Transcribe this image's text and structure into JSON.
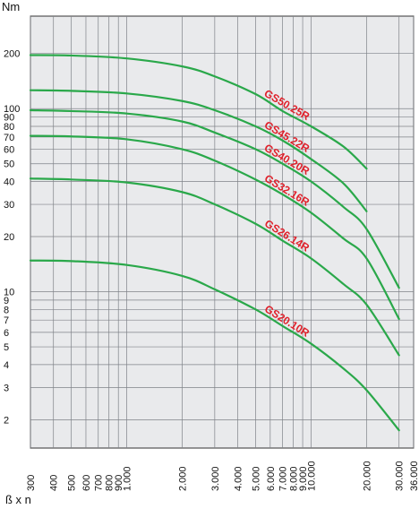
{
  "chart_data": {
    "type": "line",
    "title": "",
    "ylabel": "Nm",
    "xlabel": "ß x n",
    "x_scale": "log",
    "y_scale": "log",
    "xlim": [
      300,
      36000
    ],
    "ylim": [
      1.4,
      320
    ],
    "grid": true,
    "line_color": "#2aa84a",
    "label_color": "#e0202a",
    "background": "#e9eaec",
    "y_ticks": [
      {
        "value": 200,
        "label": "200"
      },
      {
        "value": 100,
        "label": "100"
      },
      {
        "value": 90,
        "label": "90"
      },
      {
        "value": 80,
        "label": "80"
      },
      {
        "value": 70,
        "label": "70"
      },
      {
        "value": 60,
        "label": "60"
      },
      {
        "value": 50,
        "label": "50"
      },
      {
        "value": 40,
        "label": "40"
      },
      {
        "value": 30,
        "label": "30"
      },
      {
        "value": 20,
        "label": "20"
      },
      {
        "value": 10,
        "label": "10"
      },
      {
        "value": 9,
        "label": "9"
      },
      {
        "value": 8,
        "label": "8"
      },
      {
        "value": 7,
        "label": "7"
      },
      {
        "value": 6,
        "label": "6"
      },
      {
        "value": 5,
        "label": "5"
      },
      {
        "value": 4,
        "label": "4"
      },
      {
        "value": 3,
        "label": "3"
      },
      {
        "value": 2,
        "label": "2"
      }
    ],
    "x_ticks": [
      {
        "value": 300,
        "label": "300"
      },
      {
        "value": 400,
        "label": "400"
      },
      {
        "value": 500,
        "label": "500"
      },
      {
        "value": 600,
        "label": "600"
      },
      {
        "value": 700,
        "label": "700"
      },
      {
        "value": 800,
        "label": "800"
      },
      {
        "value": 900,
        "label": "900"
      },
      {
        "value": 1000,
        "label": "1.000"
      },
      {
        "value": 2000,
        "label": "2.000"
      },
      {
        "value": 3000,
        "label": "3.000"
      },
      {
        "value": 4000,
        "label": "4.000"
      },
      {
        "value": 5000,
        "label": "5.000"
      },
      {
        "value": 6000,
        "label": "6.000"
      },
      {
        "value": 7000,
        "label": "7.000"
      },
      {
        "value": 8000,
        "label": "8.000"
      },
      {
        "value": 9000,
        "label": "9.000"
      },
      {
        "value": 10000,
        "label": "10.000"
      },
      {
        "value": 20000,
        "label": "20.000"
      },
      {
        "value": 30000,
        "label": "30.000"
      },
      {
        "value": 36000,
        "label": "36.000"
      }
    ],
    "series": [
      {
        "name": "GS50.25R",
        "points": [
          [
            300,
            196
          ],
          [
            500,
            195
          ],
          [
            1000,
            188
          ],
          [
            2000,
            170
          ],
          [
            3000,
            150
          ],
          [
            5000,
            120
          ],
          [
            7000,
            97
          ],
          [
            10000,
            80
          ],
          [
            15000,
            62
          ],
          [
            20000,
            47
          ]
        ]
      },
      {
        "name": "GS45.22R",
        "points": [
          [
            300,
            126
          ],
          [
            500,
            125
          ],
          [
            1000,
            121
          ],
          [
            2000,
            110
          ],
          [
            3000,
            98
          ],
          [
            5000,
            80
          ],
          [
            7000,
            67
          ],
          [
            10000,
            53
          ],
          [
            15000,
            39
          ],
          [
            20000,
            27.5
          ]
        ]
      },
      {
        "name": "GS40.20R",
        "points": [
          [
            300,
            98
          ],
          [
            500,
            97
          ],
          [
            1000,
            94
          ],
          [
            2000,
            85
          ],
          [
            3000,
            74
          ],
          [
            5000,
            60
          ],
          [
            7000,
            50
          ],
          [
            10000,
            40
          ],
          [
            15000,
            29
          ],
          [
            20000,
            22
          ],
          [
            30000,
            10.5
          ]
        ]
      },
      {
        "name": "GS32.16R",
        "points": [
          [
            300,
            71
          ],
          [
            500,
            70.5
          ],
          [
            1000,
            68
          ],
          [
            2000,
            60
          ],
          [
            3000,
            52
          ],
          [
            5000,
            41
          ],
          [
            7000,
            34
          ],
          [
            10000,
            27
          ],
          [
            15000,
            19.5
          ],
          [
            20000,
            15.2
          ],
          [
            30000,
            7.1
          ]
        ]
      },
      {
        "name": "GS26.14R",
        "points": [
          [
            300,
            41.5
          ],
          [
            500,
            41
          ],
          [
            1000,
            39.5
          ],
          [
            2000,
            35
          ],
          [
            3000,
            30
          ],
          [
            5000,
            23.5
          ],
          [
            7000,
            19
          ],
          [
            10000,
            15.2
          ],
          [
            15000,
            11
          ],
          [
            20000,
            8.5
          ],
          [
            30000,
            4.5
          ]
        ]
      },
      {
        "name": "GS20.10R",
        "points": [
          [
            300,
            14.8
          ],
          [
            500,
            14.7
          ],
          [
            1000,
            14
          ],
          [
            2000,
            12.2
          ],
          [
            3000,
            10.3
          ],
          [
            5000,
            8
          ],
          [
            7000,
            6.5
          ],
          [
            10000,
            5.2
          ],
          [
            15000,
            3.8
          ],
          [
            20000,
            2.9
          ],
          [
            30000,
            1.75
          ]
        ]
      }
    ]
  }
}
